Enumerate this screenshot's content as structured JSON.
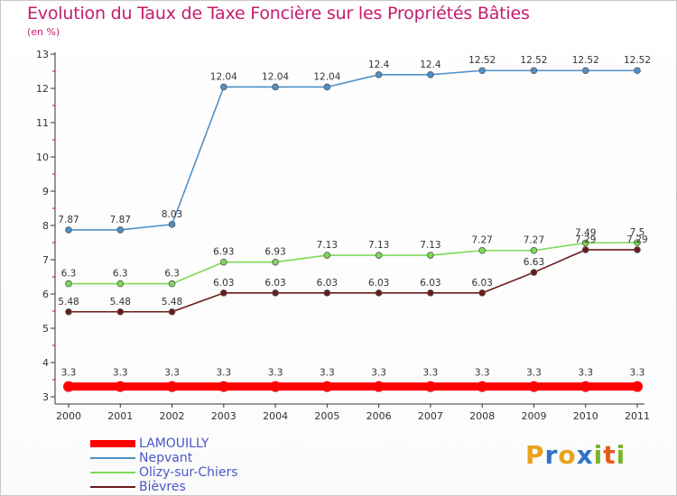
{
  "title": "Evolution du Taux de Taxe Foncière sur les Propriétés Bâties",
  "subtitle": "(en %)",
  "logo": {
    "letters": [
      "P",
      "r",
      "o",
      "x",
      "i",
      "t",
      "i"
    ],
    "colors": [
      "#e8a21c",
      "#2f73c4",
      "#e8a21c",
      "#2f73c4",
      "#7bb52a",
      "#e85b1c",
      "#7bb52a"
    ]
  },
  "chart_data": {
    "type": "line",
    "title": "Evolution du Taux de Taxe Foncière sur les Propriétés Bâties",
    "ylabel": "(en %)",
    "xlabel": "",
    "x": [
      "2000",
      "2001",
      "2002",
      "2003",
      "2004",
      "2005",
      "2006",
      "2007",
      "2008",
      "2009",
      "2010",
      "2011"
    ],
    "ylim": [
      3,
      13
    ],
    "yticks": [
      "3",
      "4",
      "5",
      "6",
      "7",
      "8",
      "9",
      "10",
      "11",
      "12",
      "13"
    ],
    "grid": false,
    "legend_position": "bottom-left",
    "series": [
      {
        "name": "LAMOUILLY",
        "color": "#ff0000",
        "emphasis": true,
        "values": [
          3.3,
          3.3,
          3.3,
          3.3,
          3.3,
          3.3,
          3.3,
          3.3,
          3.3,
          3.3,
          3.3,
          3.3
        ],
        "labels": [
          "3.3",
          "3.3",
          "3.3",
          "3.3",
          "3.3",
          "3.3",
          "3.3",
          "3.3",
          "3.3",
          "3.3",
          "3.3",
          "3.3"
        ]
      },
      {
        "name": "Nepvant",
        "color": "#4f90c9",
        "emphasis": false,
        "values": [
          7.87,
          7.87,
          8.03,
          12.04,
          12.04,
          12.04,
          12.4,
          12.4,
          12.52,
          12.52,
          12.52,
          12.52
        ],
        "labels": [
          "7.87",
          "7.87",
          "8.03",
          "12.04",
          "12.04",
          "12.04",
          "12.4",
          "12.4",
          "12.52",
          "12.52",
          "12.52",
          "12.52"
        ]
      },
      {
        "name": "Olizy-sur-Chiers",
        "color": "#7ed957",
        "emphasis": false,
        "values": [
          6.3,
          6.3,
          6.3,
          6.93,
          6.93,
          7.13,
          7.13,
          7.13,
          7.27,
          7.27,
          7.49,
          7.5
        ],
        "labels": [
          "6.3",
          "6.3",
          "6.3",
          "6.93",
          "6.93",
          "7.13",
          "7.13",
          "7.13",
          "7.27",
          "7.27",
          "7.49",
          "7.5"
        ]
      },
      {
        "name": "Bièvres",
        "color": "#6b1a1a",
        "emphasis": false,
        "values": [
          5.48,
          5.48,
          5.48,
          6.03,
          6.03,
          6.03,
          6.03,
          6.03,
          6.03,
          6.63,
          7.29,
          7.29
        ],
        "labels": [
          "5.48",
          "5.48",
          "5.48",
          "6.03",
          "6.03",
          "6.03",
          "6.03",
          "6.03",
          "6.03",
          "6.63",
          "7.29",
          "7.29"
        ]
      }
    ]
  }
}
